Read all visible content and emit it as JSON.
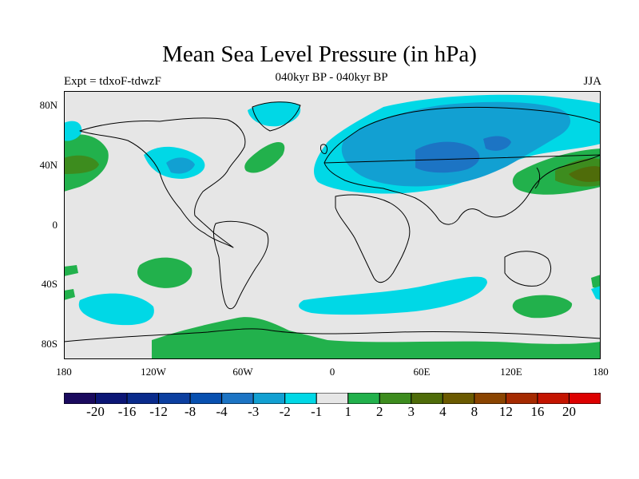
{
  "title": "Mean Sea Level Pressure (in hPa)",
  "subtitle": "040kyr BP - 040kyr BP",
  "experiment": "Expt = tdxoF-tdwzF",
  "season": "JJA",
  "y_axis": {
    "ticks": [
      "80N",
      "40N",
      "0",
      "40S",
      "80S"
    ]
  },
  "x_axis": {
    "ticks": [
      "180",
      "120W",
      "60W",
      "0",
      "60E",
      "120E",
      "180"
    ]
  },
  "colorbar": {
    "colors": [
      "#1a0a5e",
      "#0c1676",
      "#0a2b8c",
      "#0c3fa0",
      "#0850b0",
      "#1c74c4",
      "#12a0d2",
      "#00d8e6",
      "#e6e6e6",
      "#22b14c",
      "#3d8c1e",
      "#4f6c0a",
      "#6b5a00",
      "#8a4400",
      "#a52a00",
      "#c41400",
      "#dd0000"
    ],
    "labels": [
      "-20",
      "-16",
      "-12",
      "-8",
      "-4",
      "-3",
      "-2",
      "-1",
      "1",
      "2",
      "3",
      "4",
      "8",
      "12",
      "16",
      "20"
    ]
  },
  "colors": {
    "background": "#e6e6e6",
    "light_negative": "#00d8e6",
    "mid_negative": "#12a0d2",
    "strong_negative": "#1c74c4",
    "light_positive": "#22b14c",
    "mid_positive": "#3d8c1e",
    "strong_positive": "#4f6c0a"
  }
}
